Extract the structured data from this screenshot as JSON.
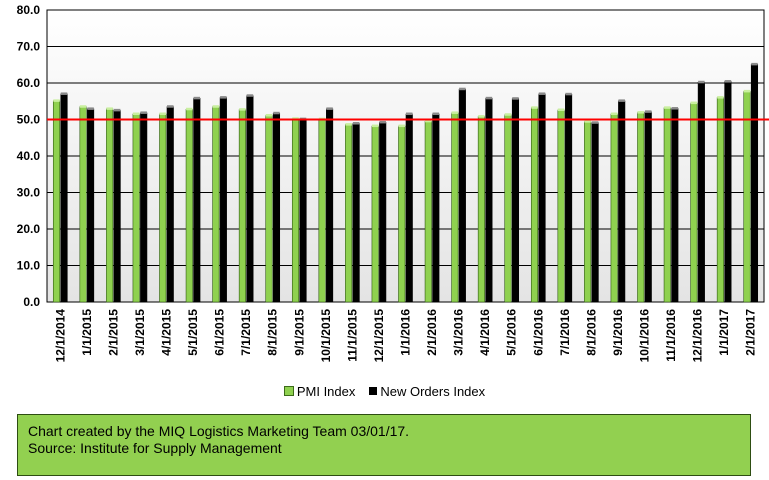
{
  "chart_data": {
    "type": "bar",
    "categories": [
      "12/1/2014",
      "1/1/2015",
      "2/1/2015",
      "3/1/2015",
      "4/1/2015",
      "5/1/2015",
      "6/1/2015",
      "7/1/2015",
      "8/1/2015",
      "9/1/2015",
      "10/1/2015",
      "11/1/2015",
      "12/1/2015",
      "1/1/2016",
      "2/1/2016",
      "3/1/2016",
      "4/1/2016",
      "5/1/2016",
      "6/1/2016",
      "7/1/2016",
      "8/1/2016",
      "9/1/2016",
      "10/1/2016",
      "11/1/2016",
      "12/1/2016",
      "1/1/2017",
      "2/1/2017"
    ],
    "series": [
      {
        "name": "PMI Index",
        "color": "#8fd14f",
        "values": [
          55.1,
          53.5,
          52.9,
          51.5,
          51.5,
          52.8,
          53.5,
          52.7,
          51.1,
          50.2,
          50.1,
          48.6,
          48.2,
          48.2,
          49.5,
          51.8,
          50.8,
          51.3,
          53.2,
          52.6,
          49.4,
          51.5,
          51.9,
          53.2,
          54.5,
          56.0,
          57.7
        ]
      },
      {
        "name": "New Orders Index",
        "color": "#000000",
        "values": [
          57.0,
          52.9,
          52.5,
          51.8,
          53.5,
          55.8,
          56.0,
          56.5,
          51.7,
          50.1,
          52.9,
          48.9,
          49.2,
          51.5,
          51.5,
          58.3,
          55.8,
          55.7,
          57.0,
          56.9,
          49.1,
          55.1,
          52.1,
          53.0,
          60.2,
          60.4,
          65.1
        ]
      }
    ],
    "reference_line": {
      "value": 50.0,
      "color": "#ff0000"
    },
    "y_ticks": [
      "0.0",
      "10.0",
      "20.0",
      "30.0",
      "40.0",
      "50.0",
      "60.0",
      "70.0",
      "80.0"
    ],
    "ylim": [
      0,
      80
    ],
    "grid": true,
    "legend_position": "bottom",
    "title": "",
    "xlabel": "",
    "ylabel": ""
  },
  "legend": {
    "pmi_label": "PMI Index",
    "orders_label": "New Orders Index"
  },
  "footer": {
    "line1": "Chart created by the MIQ Logistics Marketing Team 03/01/17.",
    "line2": "Source: Institute for Supply Management"
  }
}
